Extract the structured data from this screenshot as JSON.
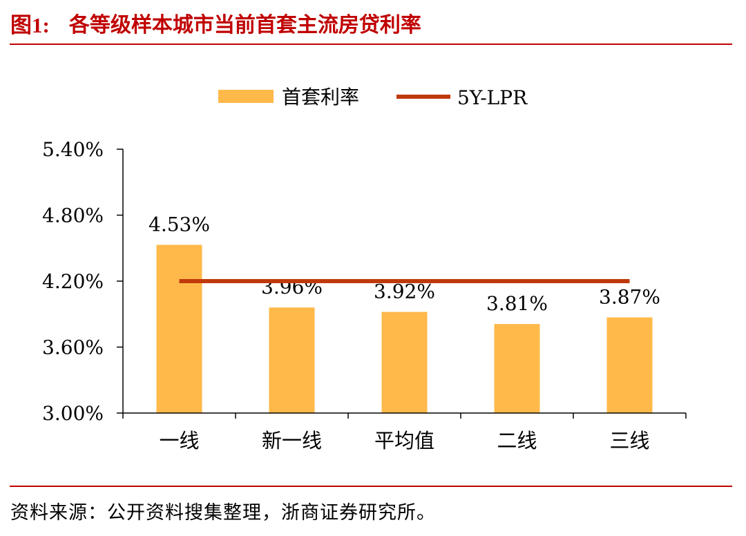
{
  "figure": {
    "label": "图1:",
    "title": "各等级样本城市当前首套主流房贷利率",
    "source": "资料来源：公开资料搜集整理，浙商证券研究所。"
  },
  "colors": {
    "accent": "#c00000",
    "bar": "#ffb94a",
    "line": "#c0390b"
  },
  "chart_data": {
    "type": "bar",
    "categories": [
      "一线",
      "新一线",
      "平均值",
      "二线",
      "三线"
    ],
    "series": [
      {
        "name": "首套利率",
        "type": "bar",
        "values": [
          4.53,
          3.96,
          3.92,
          3.81,
          3.87
        ],
        "data_labels": [
          "4.53%",
          "3.96%",
          "3.92%",
          "3.81%",
          "3.87%"
        ]
      },
      {
        "name": "5Y-LPR",
        "type": "line",
        "values": [
          4.2,
          4.2,
          4.2,
          4.2,
          4.2
        ]
      }
    ],
    "ylim": [
      3.0,
      5.4
    ],
    "yticks": [
      3.0,
      3.6,
      4.2,
      4.8,
      5.4
    ],
    "ytick_labels": [
      "3.00%",
      "3.60%",
      "4.20%",
      "4.80%",
      "5.40%"
    ],
    "legend": "top-center",
    "grid": false
  }
}
